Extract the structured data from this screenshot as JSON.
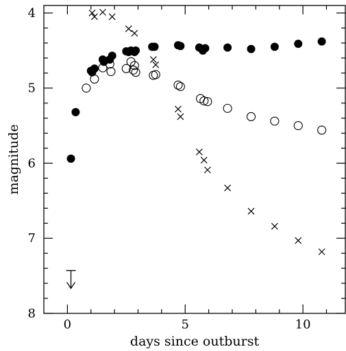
{
  "chart_data": {
    "type": "scatter",
    "xlabel": "days since outburst",
    "ylabel": "magnitude",
    "xlim": [
      -1,
      11.8
    ],
    "ylim": [
      8,
      3.9
    ],
    "y_inverted": true,
    "x_ticks_major": [
      0,
      5,
      10
    ],
    "x_tick_labels": [
      "0",
      "5",
      "10"
    ],
    "y_ticks_major": [
      4,
      5,
      6,
      7,
      8
    ],
    "y_tick_labels": [
      "4",
      "5",
      "6",
      "7",
      "8"
    ],
    "grid": false,
    "legend": "none",
    "series": [
      {
        "marker": "filled-circle",
        "points": [
          [
            0.15,
            5.94
          ],
          [
            0.35,
            5.32
          ],
          [
            1.0,
            4.77
          ],
          [
            1.05,
            4.79
          ],
          [
            1.15,
            4.74
          ],
          [
            1.5,
            4.62
          ],
          [
            1.55,
            4.65
          ],
          [
            1.8,
            4.62
          ],
          [
            1.9,
            4.57
          ],
          [
            2.5,
            4.51
          ],
          [
            2.6,
            4.52
          ],
          [
            2.7,
            4.5
          ],
          [
            2.8,
            4.51
          ],
          [
            2.85,
            4.52
          ],
          [
            2.9,
            4.5
          ],
          [
            3.6,
            4.45
          ],
          [
            3.7,
            4.45
          ],
          [
            4.7,
            4.43
          ],
          [
            4.8,
            4.44
          ],
          [
            5.6,
            4.46
          ],
          [
            5.75,
            4.5
          ],
          [
            5.85,
            4.47
          ],
          [
            6.8,
            4.46
          ],
          [
            7.8,
            4.48
          ],
          [
            8.8,
            4.45
          ],
          [
            9.8,
            4.41
          ],
          [
            10.8,
            4.38
          ]
        ]
      },
      {
        "marker": "open-circle",
        "points": [
          [
            0.8,
            5.0
          ],
          [
            1.15,
            4.88
          ],
          [
            1.5,
            4.73
          ],
          [
            1.8,
            4.68
          ],
          [
            1.85,
            4.78
          ],
          [
            2.5,
            4.74
          ],
          [
            2.7,
            4.65
          ],
          [
            2.8,
            4.76
          ],
          [
            2.85,
            4.7
          ],
          [
            2.9,
            4.79
          ],
          [
            3.65,
            4.83
          ],
          [
            3.75,
            4.82
          ],
          [
            4.7,
            4.96
          ],
          [
            4.8,
            4.98
          ],
          [
            5.65,
            5.14
          ],
          [
            5.8,
            5.17
          ],
          [
            5.95,
            5.18
          ],
          [
            6.8,
            5.27
          ],
          [
            7.8,
            5.38
          ],
          [
            8.8,
            5.44
          ],
          [
            9.8,
            5.5
          ],
          [
            10.8,
            5.56
          ]
        ]
      },
      {
        "marker": "cross",
        "points": [
          [
            1.05,
            4.0
          ],
          [
            1.15,
            4.05
          ],
          [
            1.5,
            3.99
          ],
          [
            1.9,
            4.05
          ],
          [
            2.6,
            4.21
          ],
          [
            2.85,
            4.27
          ],
          [
            3.65,
            4.62
          ],
          [
            3.75,
            4.69
          ],
          [
            4.7,
            5.28
          ],
          [
            4.8,
            5.38
          ],
          [
            5.6,
            5.85
          ],
          [
            5.8,
            5.96
          ],
          [
            5.95,
            6.09
          ],
          [
            6.8,
            6.33
          ],
          [
            7.8,
            6.64
          ],
          [
            8.8,
            6.84
          ],
          [
            9.8,
            7.03
          ],
          [
            10.8,
            7.18
          ]
        ]
      }
    ],
    "upper_limits": [
      {
        "x": 0.15,
        "y": 7.43
      }
    ]
  }
}
